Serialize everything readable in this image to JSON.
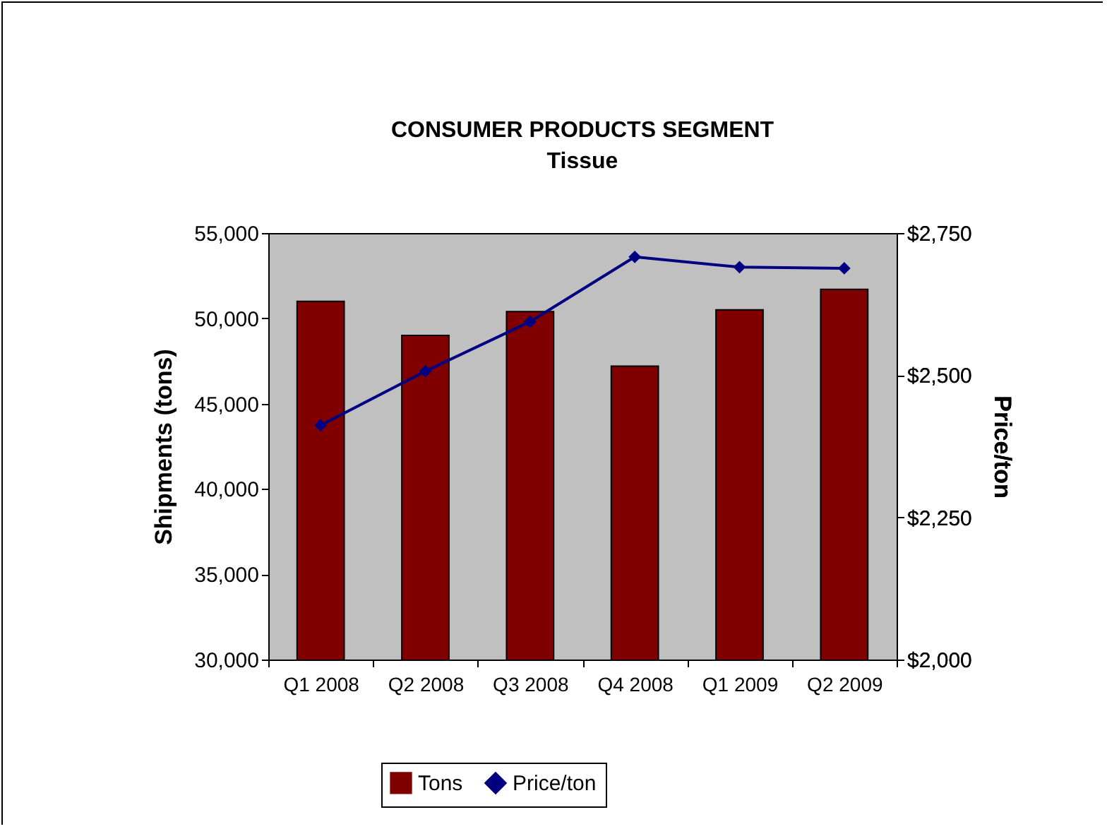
{
  "chart_data": {
    "type": "bar",
    "title": "CONSUMER PRODUCTS SEGMENT",
    "subtitle": "Tissue",
    "ylabel": "Shipments (tons)",
    "y2label": "Price/ton",
    "categories": [
      "Q1 2008",
      "Q2 2008",
      "Q3 2008",
      "Q4 2008",
      "Q1 2009",
      "Q2 2009"
    ],
    "series": [
      {
        "name": "Tons",
        "color": "#800000",
        "values": [
          51000,
          49000,
          50400,
          47200,
          50500,
          51700
        ]
      },
      {
        "name": "Price/ton",
        "type": "line",
        "axis": "y2",
        "color": "#000080",
        "values": [
          2412,
          2507,
          2594,
          2708,
          2690,
          2688
        ]
      }
    ],
    "ylim": [
      30000,
      55000
    ],
    "yticks": [
      {
        "value": 30000,
        "label": "30,000"
      },
      {
        "value": 35000,
        "label": "35,000"
      },
      {
        "value": 40000,
        "label": "40,000"
      },
      {
        "value": 45000,
        "label": "45,000"
      },
      {
        "value": 50000,
        "label": "50,000"
      },
      {
        "value": 55000,
        "label": "55,000"
      }
    ],
    "y2lim": [
      2000,
      2750
    ],
    "y2ticks": [
      {
        "value": 2000,
        "label": "$2,000"
      },
      {
        "value": 2250,
        "label": "$2,250"
      },
      {
        "value": 2500,
        "label": "$2,500"
      },
      {
        "value": 2750,
        "label": "$2,750"
      }
    ],
    "marker": "diamond",
    "legend": "bottom",
    "grid": false
  }
}
